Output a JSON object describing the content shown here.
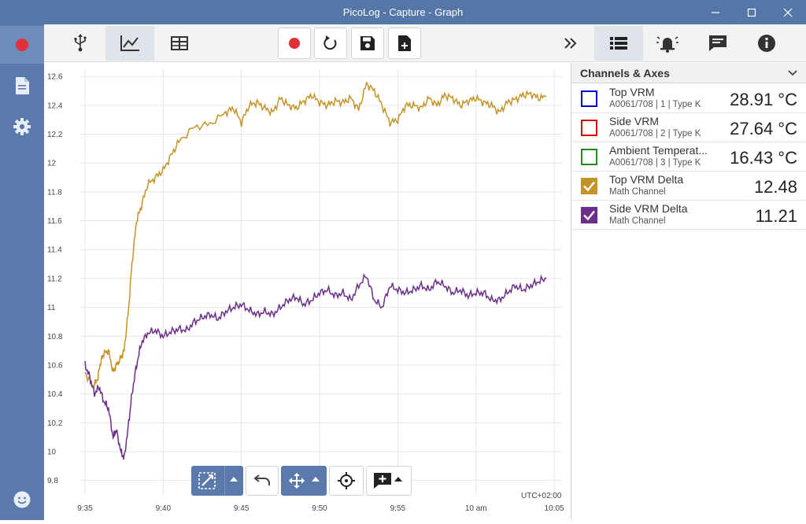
{
  "window": {
    "title": "PicoLog - Capture - Graph"
  },
  "colors": {
    "chrome": "#5577a8",
    "top_vrm": "#0000cc",
    "side_vrm": "#cc0000",
    "ambient": "#228822",
    "top_delta": "#c49428",
    "side_delta": "#6b2f8a",
    "record": "#e0303a"
  },
  "left_sidebar": {
    "icons": [
      "record-icon",
      "document-icon",
      "settings-icon",
      "feedback-icon"
    ]
  },
  "toolbar": {
    "icons": [
      "usb-icon",
      "graph-view-icon",
      "table-view-icon",
      "record-icon",
      "restart-icon",
      "save-icon",
      "save-as-icon",
      "collapse-icon",
      "channels-list-icon",
      "alarm-icon",
      "notes-icon",
      "info-icon"
    ]
  },
  "right_panel": {
    "header": "Channels & Axes",
    "channels": [
      {
        "name": "Top VRM",
        "sub": "A0061/708 | 1 | Type K",
        "value": "28.91 °C",
        "checked": false
      },
      {
        "name": "Side VRM",
        "sub": "A0061/708 | 2 | Type K",
        "value": "27.64 °C",
        "checked": false
      },
      {
        "name": "Ambient Temperat...",
        "sub": "A0061/708 | 3 | Type K",
        "value": "16.43 °C",
        "checked": false
      },
      {
        "name": "Top VRM Delta",
        "sub": "Math Channel",
        "value": "12.48",
        "checked": true
      },
      {
        "name": "Side VRM Delta",
        "sub": "Math Channel",
        "value": "11.21",
        "checked": true
      }
    ]
  },
  "graph": {
    "timezone": "UTC+02:00",
    "tools": [
      "zoom-tool-icon",
      "undo-icon",
      "pan-icon",
      "crosshair-icon",
      "add-annotation-icon"
    ]
  },
  "chart_data": {
    "type": "line",
    "x_tick_labels": [
      "9:35",
      "9:40",
      "9:45",
      "9:50",
      "9:55",
      "10 am",
      "10:05"
    ],
    "y_tick_labels": [
      "9.8",
      "10",
      "10.2",
      "10.4",
      "10.6",
      "10.8",
      "11",
      "11.2",
      "11.4",
      "11.6",
      "11.8",
      "12",
      "12.2",
      "12.4",
      "12.6"
    ],
    "ylim": [
      9.7,
      12.65
    ],
    "xlim_minutes_after_935": [
      -0.3,
      30.5
    ],
    "grid": true,
    "series": [
      {
        "name": "Top VRM Delta",
        "color": "#c49428",
        "x": [
          0,
          0.5,
          0.8,
          1,
          1.2,
          1.5,
          1.8,
          2,
          2.3,
          2.5,
          2.8,
          3,
          3.3,
          3.6,
          4,
          4.5,
          5,
          5.5,
          6,
          7,
          8,
          9,
          9.5,
          10,
          10.5,
          11,
          11.5,
          12,
          12.5,
          13,
          13.5,
          14,
          14.5,
          15,
          15.5,
          16,
          16.5,
          17,
          17.5,
          18,
          18.5,
          19,
          19.5,
          20,
          20.5,
          21,
          21.5,
          22,
          22.5,
          23,
          23.5,
          24,
          24.5,
          25,
          25.5,
          26,
          26.5,
          27,
          27.5,
          28,
          28.5,
          29,
          29.5
        ],
        "y": [
          10.55,
          10.45,
          10.5,
          10.62,
          10.68,
          10.7,
          10.55,
          10.6,
          10.65,
          10.7,
          11.0,
          11.3,
          11.6,
          11.7,
          11.85,
          11.9,
          11.95,
          12.05,
          12.15,
          12.25,
          12.27,
          12.35,
          12.38,
          12.28,
          12.4,
          12.42,
          12.38,
          12.35,
          12.45,
          12.4,
          12.38,
          12.43,
          12.47,
          12.42,
          12.4,
          12.43,
          12.42,
          12.45,
          12.37,
          12.55,
          12.5,
          12.4,
          12.28,
          12.3,
          12.4,
          12.4,
          12.38,
          12.45,
          12.4,
          12.47,
          12.45,
          12.4,
          12.43,
          12.45,
          12.42,
          12.4,
          12.35,
          12.42,
          12.44,
          12.47,
          12.48,
          12.45,
          12.46
        ]
      },
      {
        "name": "Side VRM Delta",
        "color": "#6b2f8a",
        "x": [
          0,
          0.3,
          0.6,
          0.9,
          1.2,
          1.5,
          1.8,
          2.0,
          2.3,
          2.5,
          2.8,
          3,
          3.3,
          3.6,
          4,
          4.5,
          5,
          5.5,
          6,
          6.5,
          7,
          7.5,
          8,
          8.5,
          9,
          9.5,
          10,
          10.5,
          11,
          11.5,
          12,
          12.5,
          13,
          13.5,
          14,
          14.5,
          15,
          15.5,
          16,
          16.5,
          17,
          17.5,
          18,
          18.5,
          19,
          19.5,
          20,
          20.5,
          21,
          21.5,
          22,
          22.5,
          23,
          23.5,
          24,
          24.5,
          25,
          25.5,
          26,
          26.5,
          27,
          27.5,
          28,
          28.5,
          29,
          29.5
        ],
        "y": [
          10.6,
          10.52,
          10.4,
          10.45,
          10.35,
          10.3,
          10.1,
          10.15,
          10.0,
          9.95,
          10.2,
          10.4,
          10.6,
          10.75,
          10.82,
          10.84,
          10.8,
          10.83,
          10.85,
          10.84,
          10.9,
          10.93,
          10.95,
          10.92,
          10.97,
          11.0,
          11.02,
          10.98,
          10.95,
          10.97,
          10.95,
          11.0,
          11.05,
          11.07,
          11.02,
          11.05,
          11.1,
          11.12,
          11.08,
          11.1,
          11.05,
          11.15,
          11.22,
          11.05,
          11.0,
          11.15,
          11.12,
          11.1,
          11.12,
          11.15,
          11.12,
          11.18,
          11.15,
          11.1,
          11.12,
          11.08,
          11.1,
          11.1,
          11.05,
          11.05,
          11.1,
          11.15,
          11.12,
          11.15,
          11.18,
          11.2
        ]
      }
    ]
  }
}
